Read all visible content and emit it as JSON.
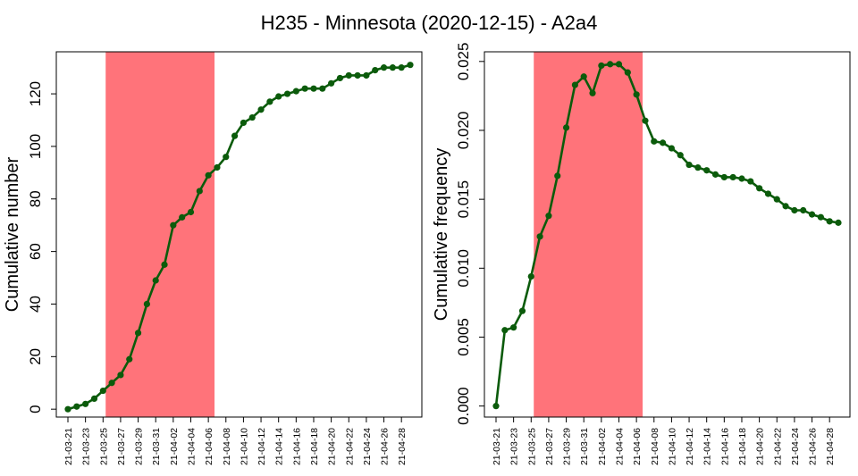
{
  "title": "H235 - Minnesota (2020-12-15) - A2a4",
  "colors": {
    "line": "#0b5b0b",
    "highlight": "#ff737a",
    "axis": "#000000"
  },
  "chart_data": [
    {
      "type": "line",
      "ylabel": "Cumulative number",
      "ylim": [
        -3,
        136
      ],
      "yticks": [
        0,
        20,
        40,
        60,
        80,
        100,
        120
      ],
      "ytick_labels": [
        "0",
        "20",
        "40",
        "60",
        "80",
        "100",
        "120"
      ],
      "x": [
        "21-03-21",
        "21-03-22",
        "21-03-23",
        "21-03-24",
        "21-03-25",
        "21-03-26",
        "21-03-27",
        "21-03-28",
        "21-03-29",
        "21-03-30",
        "21-03-31",
        "21-04-01",
        "21-04-02",
        "21-04-03",
        "21-04-04",
        "21-04-05",
        "21-04-06",
        "21-04-07",
        "21-04-08",
        "21-04-09",
        "21-04-10",
        "21-04-11",
        "21-04-12",
        "21-04-13",
        "21-04-14",
        "21-04-15",
        "21-04-16",
        "21-04-17",
        "21-04-18",
        "21-04-19",
        "21-04-20",
        "21-04-21",
        "21-04-22",
        "21-04-23",
        "21-04-24",
        "21-04-25",
        "21-04-26",
        "21-04-27",
        "21-04-28",
        "21-04-29"
      ],
      "xtick_labels": [
        "21-03-21",
        "21-03-23",
        "21-03-25",
        "21-03-27",
        "21-03-29",
        "21-03-31",
        "21-04-02",
        "21-04-04",
        "21-04-06",
        "21-04-08",
        "21-04-10",
        "21-04-12",
        "21-04-14",
        "21-04-16",
        "21-04-18",
        "21-04-20",
        "21-04-22",
        "21-04-24",
        "21-04-26",
        "21-04-28"
      ],
      "values": [
        0,
        1,
        2,
        4,
        7,
        10,
        13,
        19,
        29,
        40,
        49,
        55,
        70,
        73,
        75,
        83,
        89,
        92,
        96,
        104,
        109,
        111,
        114,
        117,
        119,
        120,
        121,
        122,
        122,
        122,
        124,
        126,
        127,
        127,
        127,
        129,
        130,
        130,
        130,
        131
      ],
      "highlight_range": [
        "21-03-26",
        "21-04-06"
      ],
      "grid": false
    },
    {
      "type": "line",
      "ylabel": "Cumulative frequency",
      "ylim": [
        -0.0008,
        0.0257
      ],
      "yticks": [
        0.0,
        0.005,
        0.01,
        0.015,
        0.02,
        0.025
      ],
      "ytick_labels": [
        "0.000",
        "0.005",
        "0.010",
        "0.015",
        "0.020",
        "0.025"
      ],
      "x": [
        "21-03-21",
        "21-03-22",
        "21-03-23",
        "21-03-24",
        "21-03-25",
        "21-03-26",
        "21-03-27",
        "21-03-28",
        "21-03-29",
        "21-03-30",
        "21-03-31",
        "21-04-01",
        "21-04-02",
        "21-04-03",
        "21-04-04",
        "21-04-05",
        "21-04-06",
        "21-04-07",
        "21-04-08",
        "21-04-09",
        "21-04-10",
        "21-04-11",
        "21-04-12",
        "21-04-13",
        "21-04-14",
        "21-04-15",
        "21-04-16",
        "21-04-17",
        "21-04-18",
        "21-04-19",
        "21-04-20",
        "21-04-21",
        "21-04-22",
        "21-04-23",
        "21-04-24",
        "21-04-25",
        "21-04-26",
        "21-04-27",
        "21-04-28",
        "21-04-29"
      ],
      "xtick_labels": [
        "21-03-21",
        "21-03-23",
        "21-03-25",
        "21-03-27",
        "21-03-29",
        "21-03-31",
        "21-04-02",
        "21-04-04",
        "21-04-06",
        "21-04-08",
        "21-04-10",
        "21-04-12",
        "21-04-14",
        "21-04-16",
        "21-04-18",
        "21-04-20",
        "21-04-22",
        "21-04-24",
        "21-04-26",
        "21-04-28"
      ],
      "values": [
        0.0,
        0.0055,
        0.0057,
        0.0069,
        0.0094,
        0.0123,
        0.0138,
        0.0167,
        0.0202,
        0.0233,
        0.0239,
        0.0227,
        0.0247,
        0.0248,
        0.0248,
        0.0242,
        0.0226,
        0.0207,
        0.0192,
        0.0191,
        0.0187,
        0.0182,
        0.0175,
        0.0173,
        0.0171,
        0.0168,
        0.0166,
        0.0166,
        0.0165,
        0.0163,
        0.0158,
        0.0154,
        0.015,
        0.0145,
        0.0142,
        0.0142,
        0.0139,
        0.0137,
        0.0134,
        0.0133
      ],
      "highlight_range": [
        "21-03-26",
        "21-04-06"
      ],
      "grid": false
    }
  ]
}
